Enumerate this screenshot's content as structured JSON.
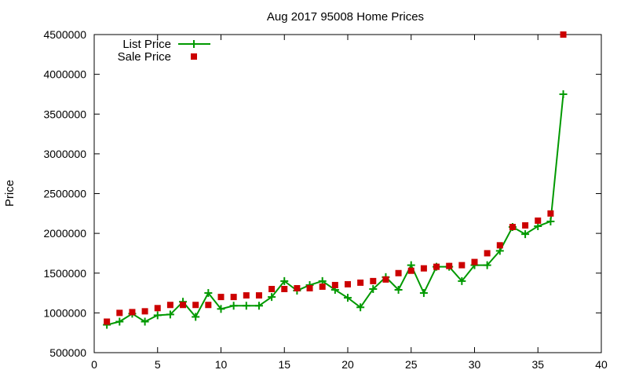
{
  "chart_data": {
    "type": "line",
    "title": "Aug 2017 95008 Home Prices",
    "xlabel": "",
    "ylabel": "Price",
    "xlim": [
      0,
      40
    ],
    "ylim": [
      500000,
      4500000
    ],
    "xticks": [
      0,
      5,
      10,
      15,
      20,
      25,
      30,
      35,
      40
    ],
    "yticks": [
      500000,
      1000000,
      1500000,
      2000000,
      2500000,
      3000000,
      3500000,
      4000000,
      4500000
    ],
    "grid": false,
    "legend_position": "top-left",
    "series": [
      {
        "name": "List Price",
        "style": "line-plus",
        "color": "#009900",
        "x": [
          1,
          2,
          3,
          4,
          5,
          6,
          7,
          8,
          9,
          10,
          11,
          12,
          13,
          14,
          15,
          16,
          17,
          18,
          19,
          20,
          21,
          22,
          23,
          24,
          25,
          26,
          27,
          28,
          29,
          30,
          31,
          32,
          33,
          34,
          35,
          36,
          37
        ],
        "y": [
          850000,
          890000,
          990000,
          890000,
          970000,
          980000,
          1140000,
          950000,
          1250000,
          1050000,
          1090000,
          1090000,
          1090000,
          1200000,
          1400000,
          1280000,
          1350000,
          1400000,
          1290000,
          1190000,
          1070000,
          1300000,
          1450000,
          1290000,
          1600000,
          1250000,
          1580000,
          1580000,
          1400000,
          1600000,
          1600000,
          1780000,
          2080000,
          1990000,
          2090000,
          2150000,
          3750000
        ]
      },
      {
        "name": "Sale Price",
        "style": "square",
        "color": "#cc0000",
        "x": [
          1,
          2,
          3,
          4,
          5,
          6,
          7,
          8,
          9,
          10,
          11,
          12,
          13,
          14,
          15,
          16,
          17,
          18,
          19,
          20,
          21,
          22,
          23,
          24,
          25,
          26,
          27,
          28,
          29,
          30,
          31,
          32,
          33,
          34,
          35,
          36,
          37
        ],
        "y": [
          890000,
          1000000,
          1010000,
          1020000,
          1060000,
          1100000,
          1100000,
          1100000,
          1100000,
          1200000,
          1200000,
          1220000,
          1220000,
          1300000,
          1300000,
          1310000,
          1310000,
          1330000,
          1350000,
          1360000,
          1380000,
          1400000,
          1420000,
          1500000,
          1530000,
          1560000,
          1580000,
          1590000,
          1600000,
          1640000,
          1750000,
          1850000,
          2080000,
          2100000,
          2160000,
          2250000,
          4500000
        ]
      }
    ]
  }
}
